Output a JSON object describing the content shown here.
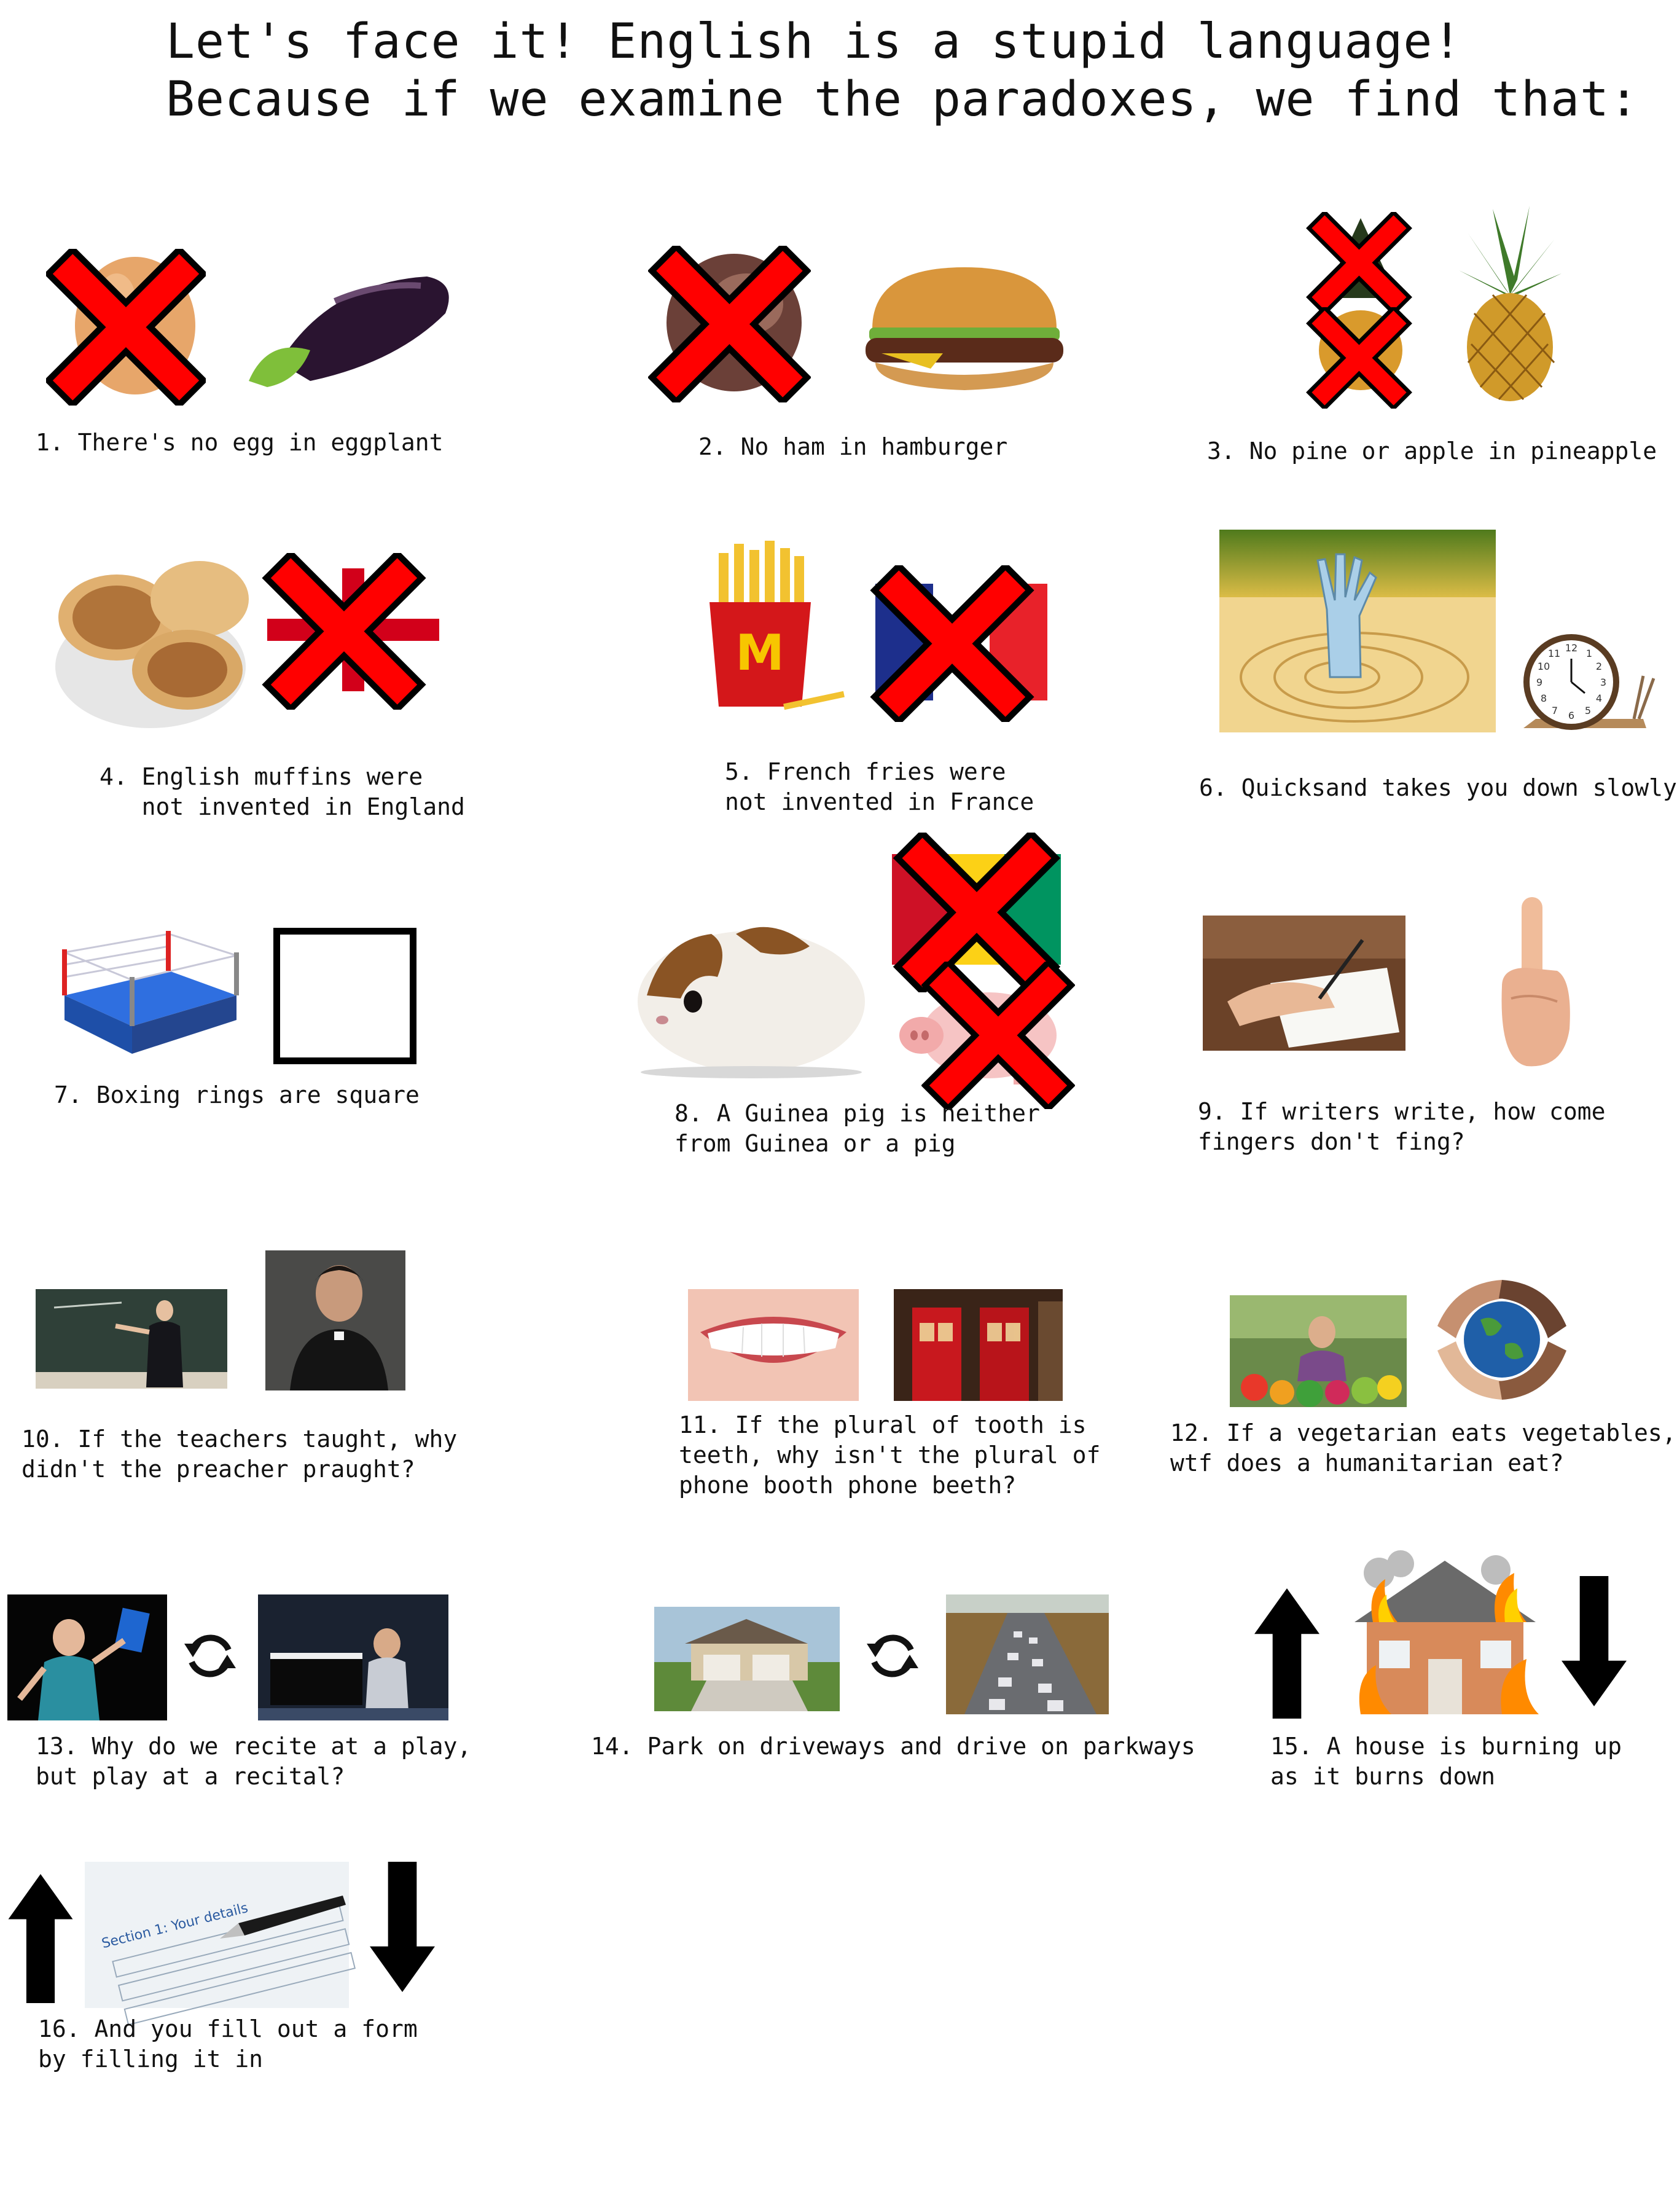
{
  "title": {
    "line1": "Let's face it! English is a stupid language!",
    "line2": "Because if we examine the paradoxes, we find that:"
  },
  "items": [
    {
      "caption": "1. There's no egg in eggplant"
    },
    {
      "caption": "2. No ham in hamburger"
    },
    {
      "caption": "3. No pine or apple in pineapple"
    },
    {
      "caption": "4. English muffins were\n   not invented in England"
    },
    {
      "caption": "5. French fries were\nnot invented in France"
    },
    {
      "caption": "6. Quicksand takes you down slowly"
    },
    {
      "caption": "7. Boxing rings are square"
    },
    {
      "caption": "8. A Guinea pig is neither\nfrom Guinea or a pig"
    },
    {
      "caption": "9. If writers write, how come\nfingers don't fing?"
    },
    {
      "caption": "10. If the teachers taught, why\ndidn't the preacher praught?"
    },
    {
      "caption": "11. If the plural of tooth is\nteeth, why isn't the plural of\nphone booth phone beeth?"
    },
    {
      "caption": "12. If a vegetarian eats vegetables,\nwtf does a humanitarian eat?"
    },
    {
      "caption": "13. Why do we recite at a play,\nbut play at a recital?"
    },
    {
      "caption": "14. Park on driveways and drive on parkways"
    },
    {
      "caption": "15. A house is burning up\nas it burns down"
    },
    {
      "caption": "16. And you fill out a form\nby filling it in"
    }
  ],
  "image_text": {
    "form_heading": "Section 1: Your details",
    "clock_numbers": [
      "12",
      "1",
      "2",
      "3",
      "4",
      "5",
      "6",
      "7",
      "8",
      "9",
      "10",
      "11"
    ]
  },
  "colors": {
    "cross_red": "#ff0000",
    "cross_outline": "#000000",
    "arrow": "#000000"
  }
}
